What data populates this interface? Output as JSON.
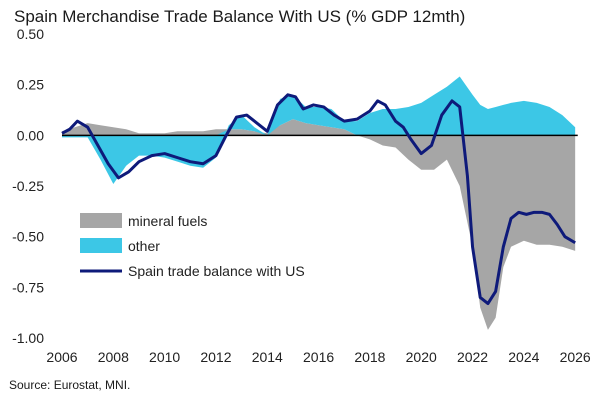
{
  "chart_data": {
    "type": "area",
    "title": "Spain Merchandise Trade Balance With US (% GDP 12mth)",
    "source": "Source: Eurostat, MNI.",
    "xlim": [
      2006,
      2026.5
    ],
    "ylim": [
      -1.0,
      0.5
    ],
    "x_ticks": [
      "2006",
      "2008",
      "2010",
      "2012",
      "2014",
      "2016",
      "2018",
      "2020",
      "2022",
      "2024",
      "2026"
    ],
    "y_ticks": [
      "0.50",
      "0.25",
      "0.00",
      "-0.25",
      "-0.50",
      "-0.75",
      "-1.00"
    ],
    "legend_position": "lower-left",
    "grid": false,
    "colors": {
      "mineral_fuels": "#a6a6a6",
      "other": "#3cc7e6",
      "balance": "#0e1a7a",
      "zero_line": "#000000"
    },
    "series": [
      {
        "name": "mineral fuels",
        "style": "stacked-area",
        "x": [
          2006,
          2006.5,
          2007,
          2007.5,
          2008,
          2008.5,
          2009,
          2009.5,
          2010,
          2010.5,
          2011,
          2011.5,
          2012,
          2012.5,
          2013,
          2013.5,
          2014,
          2014.5,
          2015,
          2015.5,
          2016,
          2016.5,
          2017,
          2017.5,
          2018,
          2018.5,
          2019,
          2019.5,
          2020,
          2020.5,
          2021,
          2021.5,
          2022,
          2022.3,
          2022.6,
          2022.9,
          2023.2,
          2023.5,
          2024,
          2024.5,
          2025,
          2025.5,
          2026
        ],
        "values": [
          0.02,
          0.04,
          0.06,
          0.05,
          0.04,
          0.03,
          0.01,
          0.01,
          0.01,
          0.02,
          0.02,
          0.02,
          0.03,
          0.03,
          0.03,
          0.02,
          0.01,
          0.05,
          0.08,
          0.06,
          0.05,
          0.04,
          0.03,
          0.0,
          -0.02,
          -0.05,
          -0.06,
          -0.12,
          -0.17,
          -0.17,
          -0.12,
          -0.25,
          -0.55,
          -0.85,
          -0.96,
          -0.9,
          -0.65,
          -0.55,
          -0.52,
          -0.54,
          -0.54,
          -0.55,
          -0.57
        ]
      },
      {
        "name": "other",
        "style": "stacked-area",
        "x": [
          2006,
          2006.5,
          2007,
          2007.5,
          2008,
          2008.5,
          2009,
          2009.5,
          2010,
          2010.5,
          2011,
          2011.5,
          2012,
          2012.5,
          2013,
          2013.5,
          2014,
          2014.5,
          2015,
          2015.5,
          2016,
          2016.5,
          2017,
          2017.5,
          2018,
          2018.5,
          2019,
          2019.5,
          2020,
          2020.5,
          2021,
          2021.5,
          2022,
          2022.3,
          2022.6,
          2022.9,
          2023.2,
          2023.5,
          2024,
          2024.5,
          2025,
          2025.5,
          2026
        ],
        "values": [
          -0.01,
          -0.01,
          -0.01,
          -0.12,
          -0.24,
          -0.15,
          -0.1,
          -0.1,
          -0.11,
          -0.13,
          -0.15,
          -0.16,
          -0.11,
          0.02,
          0.07,
          0.02,
          0.0,
          0.13,
          0.12,
          0.08,
          0.09,
          0.09,
          0.04,
          0.07,
          0.11,
          0.13,
          0.13,
          0.14,
          0.16,
          0.2,
          0.24,
          0.29,
          0.2,
          0.15,
          0.13,
          0.14,
          0.15,
          0.16,
          0.17,
          0.16,
          0.14,
          0.1,
          0.04
        ]
      },
      {
        "name": "Spain trade balance with US",
        "style": "line",
        "x": [
          2006,
          2006.3,
          2006.6,
          2007,
          2007.4,
          2007.8,
          2008.2,
          2008.6,
          2009,
          2009.5,
          2010,
          2010.5,
          2011,
          2011.5,
          2012,
          2012.4,
          2012.8,
          2013.2,
          2013.6,
          2014,
          2014.4,
          2014.8,
          2015.1,
          2015.4,
          2015.8,
          2016.2,
          2016.6,
          2017,
          2017.5,
          2018,
          2018.3,
          2018.6,
          2019,
          2019.3,
          2019.6,
          2020,
          2020.4,
          2020.8,
          2021.2,
          2021.5,
          2021.8,
          2022,
          2022.3,
          2022.6,
          2022.9,
          2023.2,
          2023.5,
          2023.8,
          2024.1,
          2024.4,
          2024.7,
          2025,
          2025.3,
          2025.6,
          2026
        ],
        "values": [
          0.01,
          0.03,
          0.07,
          0.04,
          -0.05,
          -0.14,
          -0.21,
          -0.18,
          -0.13,
          -0.1,
          -0.09,
          -0.11,
          -0.13,
          -0.14,
          -0.1,
          0.0,
          0.09,
          0.1,
          0.06,
          0.02,
          0.15,
          0.2,
          0.19,
          0.13,
          0.15,
          0.14,
          0.1,
          0.07,
          0.08,
          0.12,
          0.17,
          0.15,
          0.07,
          0.04,
          -0.02,
          -0.09,
          -0.05,
          0.1,
          0.17,
          0.14,
          -0.2,
          -0.55,
          -0.8,
          -0.83,
          -0.77,
          -0.55,
          -0.41,
          -0.38,
          -0.39,
          -0.38,
          -0.38,
          -0.39,
          -0.44,
          -0.5,
          -0.53
        ]
      }
    ]
  }
}
